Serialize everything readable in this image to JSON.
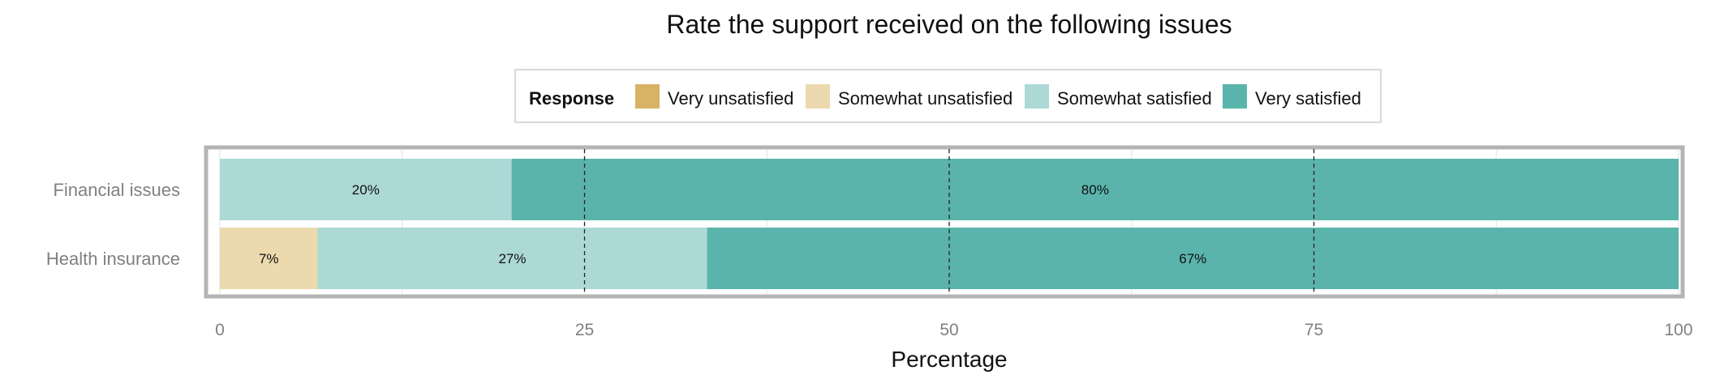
{
  "chart_data": {
    "type": "bar",
    "orientation": "horizontal",
    "stacked": true,
    "title": "Rate the support received on the following issues",
    "xlabel": "Percentage",
    "ylabel": "",
    "xlim": [
      0,
      100
    ],
    "x_ticks": [
      0,
      25,
      50,
      75,
      100
    ],
    "reference_lines": [
      25,
      50,
      75
    ],
    "grid": true,
    "legend": {
      "title": "Response",
      "placement": "top",
      "entries": [
        "Very unsatisfied",
        "Somewhat unsatisfied",
        "Somewhat satisfied",
        "Very satisfied"
      ]
    },
    "categories": [
      "Financial issues",
      "Health insurance"
    ],
    "series": [
      {
        "name": "Very unsatisfied",
        "color": "#D8B365",
        "values": [
          0,
          0
        ],
        "labels": [
          "",
          ""
        ]
      },
      {
        "name": "Somewhat unsatisfied",
        "color": "#ECD9AE",
        "values": [
          0,
          6.7
        ],
        "labels": [
          "",
          "7%"
        ]
      },
      {
        "name": "Somewhat satisfied",
        "color": "#ACD9D5",
        "values": [
          20,
          26.7
        ],
        "labels": [
          "20%",
          "27%"
        ]
      },
      {
        "name": "Very satisfied",
        "color": "#5AB4AC",
        "values": [
          80,
          66.6
        ],
        "labels": [
          "80%",
          "67%"
        ]
      }
    ]
  }
}
